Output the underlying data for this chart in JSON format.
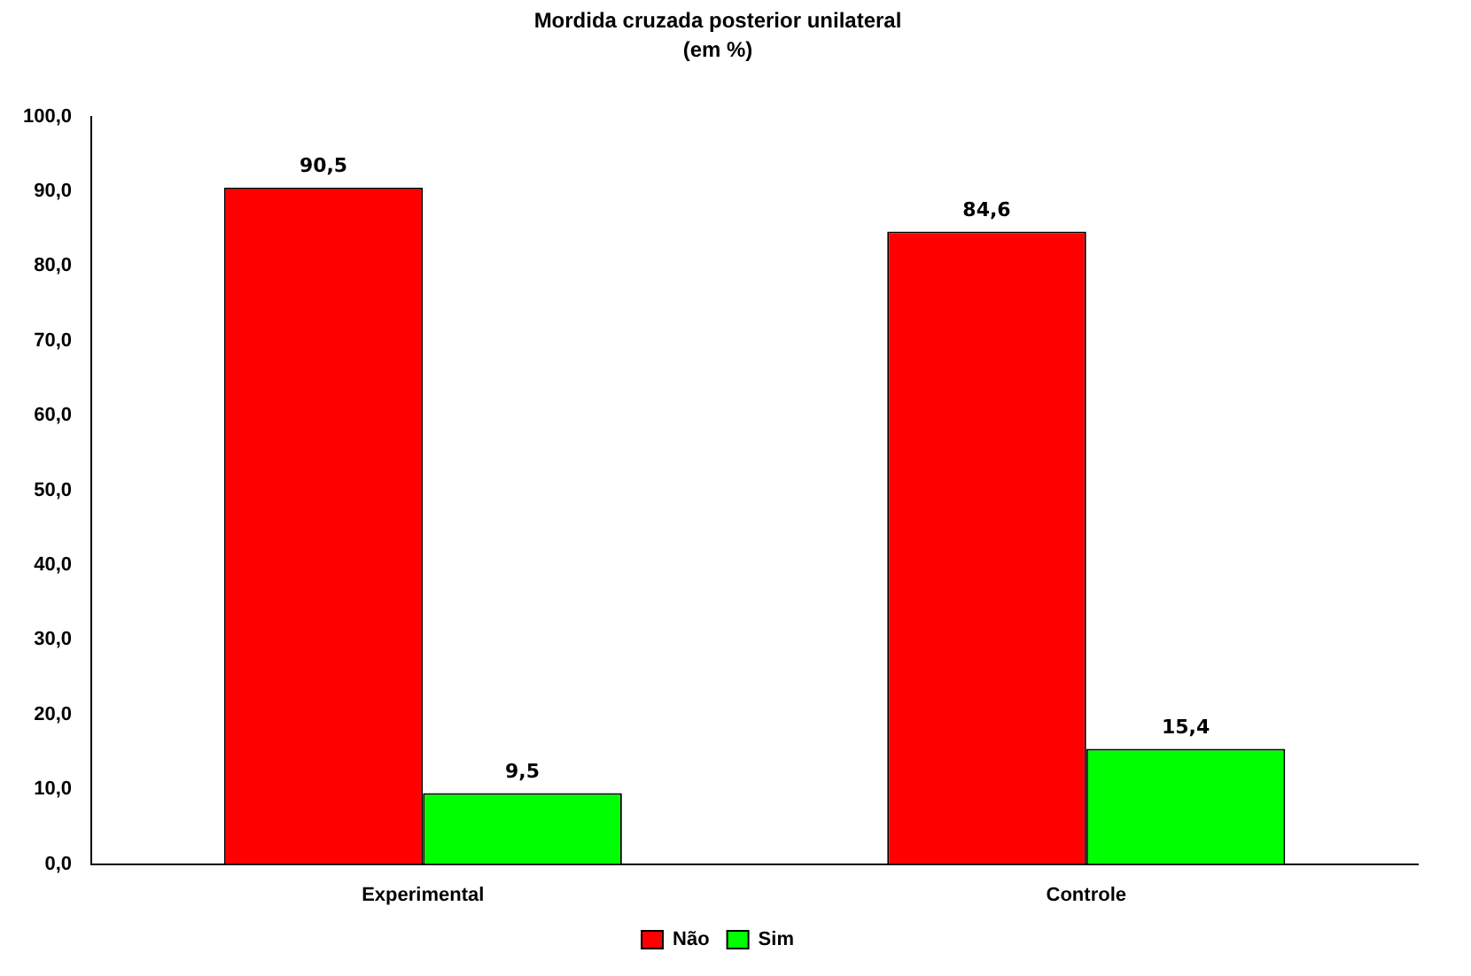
{
  "chart_data": {
    "type": "bar",
    "title": "Mordida cruzada posterior unilateral",
    "subtitle": "(em %)",
    "categories": [
      "Experimental",
      "Controle"
    ],
    "series": [
      {
        "name": "Não",
        "color": "#ff0000",
        "values": [
          90.5,
          84.6
        ],
        "value_labels": [
          "90,5",
          "84,6"
        ]
      },
      {
        "name": "Sim",
        "color": "#00ff00",
        "values": [
          9.5,
          15.4
        ],
        "value_labels": [
          "9,5",
          "15,4"
        ]
      }
    ],
    "ylim": [
      0,
      100
    ],
    "yticks": [
      {
        "value": 0,
        "label": "0,0"
      },
      {
        "value": 10,
        "label": "10,0"
      },
      {
        "value": 20,
        "label": "20,0"
      },
      {
        "value": 30,
        "label": "30,0"
      },
      {
        "value": 40,
        "label": "40,0"
      },
      {
        "value": 50,
        "label": "50,0"
      },
      {
        "value": 60,
        "label": "60,0"
      },
      {
        "value": 70,
        "label": "70,0"
      },
      {
        "value": 80,
        "label": "80,0"
      },
      {
        "value": 90,
        "label": "90,0"
      },
      {
        "value": 100,
        "label": "100,0"
      }
    ],
    "grid": false,
    "legend": "bottom"
  }
}
